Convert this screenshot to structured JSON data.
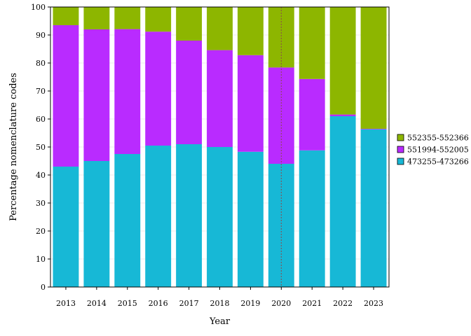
{
  "chart_data": {
    "type": "bar",
    "stacked": true,
    "title": "",
    "xlabel": "Year",
    "ylabel": "Percentage nomenclature codes",
    "ylim": [
      0,
      100
    ],
    "yticks": [
      0,
      10,
      20,
      30,
      40,
      50,
      60,
      70,
      80,
      90,
      100
    ],
    "grid": true,
    "legend_position": "right",
    "reference_line": {
      "x": "2020",
      "style": "dotted",
      "color": "#8b4a4a"
    },
    "categories": [
      "2013",
      "2014",
      "2015",
      "2016",
      "2017",
      "2018",
      "2019",
      "2020",
      "2021",
      "2022",
      "2023"
    ],
    "series": [
      {
        "name": "473255-473266",
        "color": "#17b8d6",
        "values": [
          43,
          45,
          47.5,
          50.5,
          51,
          50,
          48.3,
          44,
          48.8,
          61,
          56.3
        ]
      },
      {
        "name": "551994-552005",
        "color": "#b92bff",
        "values": [
          50.5,
          47,
          44.6,
          40.7,
          37,
          34.6,
          34.5,
          34.4,
          25.5,
          0.6,
          0.2
        ]
      },
      {
        "name": "552355-552366",
        "color": "#8db600",
        "values": [
          6.5,
          8,
          7.9,
          8.8,
          12,
          15.4,
          17.2,
          21.6,
          25.7,
          38.4,
          43.5
        ]
      }
    ],
    "legend_order": [
      "552355-552366",
      "551994-552005",
      "473255-473266"
    ]
  }
}
